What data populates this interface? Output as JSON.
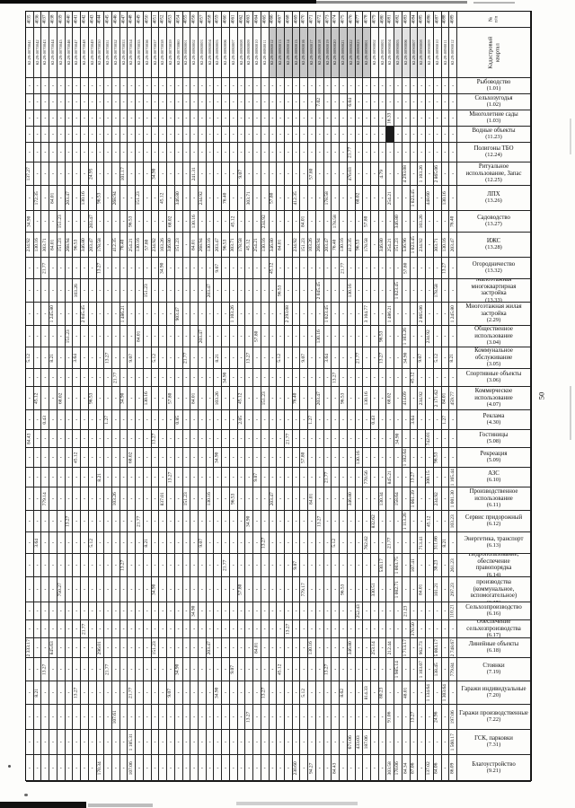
{
  "page": {
    "number": "50"
  },
  "colors": {
    "paper": "#fdfdfb",
    "ink": "#101010",
    "border": "#222222",
    "shade_dark": "#c7c7c7",
    "shade_light": "#e2e2e2"
  },
  "table": {
    "header": {
      "col1": "№\nп/п",
      "col2": "Кадастровый\nквартал"
    },
    "empty_marker": "-",
    "shaded_columns": {
      "dark_start": 31,
      "dark_end": 43,
      "light_start": 47,
      "light_end": 50
    },
    "columns": {
      "numbers": [
        "4035",
        "4036",
        "4037",
        "4038",
        "4039",
        "4040",
        "4041",
        "4042",
        "4043",
        "4044",
        "4045",
        "4046",
        "4047",
        "4048",
        "4049",
        "4050",
        "4051",
        "4052",
        "4053",
        "4054",
        "4055",
        "4056",
        "4057",
        "4058",
        "4059",
        "4060",
        "4061",
        "4062",
        "4063",
        "4064",
        "4065",
        "4066",
        "4067",
        "4068",
        "4069",
        "4070",
        "4071",
        "4072",
        "4073",
        "4074",
        "4075",
        "4076",
        "4077",
        "4078",
        "4079",
        "4080",
        "4081",
        "4082",
        "4083",
        "4084",
        "4085",
        "4086",
        "4087",
        "4088",
        "4089"
      ],
      "cadastral": [
        "62:29:0070041",
        "62:29:0070042",
        "62:29:0070043",
        "62:29:0070044",
        "62:29:0070045",
        "62:29:0070046",
        "62:29:0070047",
        "62:29:0070048",
        "62:29:0070049",
        "62:29:0070050",
        "62:29:0070051",
        "62:29:0070052",
        "62:29:0070053",
        "62:29:0070054",
        "62:29:0070055",
        "62:29:0070056",
        "62:29:0070057",
        "62:29:0070058",
        "62:29:0070059",
        "62:29:0070060",
        "62:29:0080001",
        "62:29:0080002",
        "62:29:0080003",
        "62:29:0080004",
        "62:29:0080005",
        "62:29:0080006",
        "62:29:0080007",
        "62:29:0080008",
        "62:29:0080009",
        "62:29:0080010",
        "62:29:0080011",
        "62:29:0080012",
        "62:29:0080013",
        "62:29:0080014",
        "62:29:0080015",
        "62:29:0080016",
        "62:29:0080017",
        "62:29:0080018",
        "62:29:0080019",
        "62:29:0080020",
        "62:29:0080021",
        "62:29:0080022",
        "62:29:0080023",
        "62:29:0090001",
        "62:29:0090002",
        "62:29:0090003",
        "62:29:0090004",
        "62:29:0090005",
        "62:29:0090006",
        "62:29:0090007",
        "62:29:0090008",
        "62:29:0090009",
        "62:29:0090010",
        "62:29:0090011",
        "62:29:0090012"
      ]
    },
    "rows": [
      {
        "name": "Рыбоводство",
        "code": "(1.01)",
        "fills": {}
      },
      {
        "name": "Сельхозугодья",
        "code": "(1.02)",
        "fills": {
          "37": "7.02",
          "41": "6.04"
        }
      },
      {
        "name": "Многолетние сады",
        "code": "(1.03)",
        "fills": {
          "46": "16.33"
        }
      },
      {
        "name": "Водные объекты",
        "code": "(11.23)",
        "fills": {},
        "black": [
          46
        ]
      },
      {
        "name": "Полигоны ТБО",
        "code": "(12.24)",
        "fills": {
          "41": "21.77"
        }
      },
      {
        "name": "Ритуальное использование, Запас",
        "code": "(12.25)",
        "fills": {
          "0": "137.27",
          "8": "24.95",
          "12": "101.17",
          "16": "34.90",
          "21": "241.31",
          "27": "9.07",
          "36": "57.80",
          "41": "476.03",
          "45": "4.79",
          "48": "4 293.08",
          "50": "1 103.26",
          "52": "2 865.06"
        }
      },
      {
        "name": "ЛПХ",
        "code": "(13.26)",
        "fills": {
          "1": "172.35",
          "3": "84.01",
          "5": "203.47",
          "7": "130.16",
          "9": "96.53",
          "11": "268.94",
          "14": "151.23",
          "17": "45.12",
          "19": "346.80",
          "22": "234.92",
          "25": "76.40",
          "28": "303.71",
          "31": "57.80",
          "34": "412.35",
          "38": "178.58",
          "42": "68.02",
          "46": "254.21",
          "49": "1 023.45",
          "51": "448.60",
          "53": "130.16"
        }
      },
      {
        "name": "Садоводство",
        "code": "(13.27)",
        "fills": {
          "0": "34.90",
          "4": "151.23",
          "8": "203.47",
          "13": "96.53",
          "18": "68.02",
          "21": "130.16",
          "26": "45.12",
          "30": "234.92",
          "35": "84.01",
          "39": "178.58",
          "43": "57.80",
          "47": "346.80",
          "50": "103.26",
          "54": "76.40"
        }
      },
      {
        "name": "ИЖС",
        "code": "(13.28)",
        "fills": {
          "0": "234.92",
          "1": "130.16",
          "2": "303.71",
          "3": "84.01",
          "4": "151.23",
          "5": "268.94",
          "6": "96.53",
          "7": "346.80",
          "8": "203.47",
          "9": "178.58",
          "11": "412.35",
          "12": "76.40",
          "13": "254.21",
          "14": "130.16",
          "15": "57.80",
          "16": "234.92",
          "17": "103.26",
          "18": "346.80",
          "19": "151.23",
          "21": "84.01",
          "22": "268.94",
          "23": "130.16",
          "24": "203.47",
          "25": "96.53",
          "26": "303.71",
          "27": "178.58",
          "28": "45.12",
          "29": "254.21",
          "30": "130.16",
          "31": "346.80",
          "32": "84.01",
          "34": "234.92",
          "35": "151.23",
          "36": "103.26",
          "37": "268.94",
          "38": "203.47",
          "39": "76.40",
          "40": "130.16",
          "41": "412.35",
          "42": "96.53",
          "43": "178.58",
          "45": "346.80",
          "46": "254.21",
          "47": "151.23",
          "48": "536.96",
          "49": "1 023.45",
          "50": "234.92",
          "52": "303.71",
          "53": "130.16",
          "54": "203.47"
        }
      },
      {
        "name": "Огородничество",
        "code": "(13.32)",
        "fills": {
          "2": "21.77",
          "9": "13.27",
          "17": "34.90",
          "24": "9.07",
          "31": "45.12",
          "40": "21.77",
          "48": "57.80",
          "53": "13.27"
        }
      },
      {
        "name": "Малоэтажная многоквартирная застройка",
        "code": "(13.33)",
        "fills": {
          "6": "103.26",
          "15": "151.23",
          "23": "203.47",
          "32": "96.53",
          "37": "2 045.45",
          "41": "130.16",
          "47": "1 023.45",
          "52": "178.58"
        }
      },
      {
        "name": "Многоэтажная жилая застройка",
        "code": "(2.29)",
        "fills": {
          "3": "1 245.80",
          "7": "2 045.45",
          "12": "1 486.21",
          "19": "903.47",
          "26": "1 103.26",
          "33": "2 293.08",
          "38": "1 023.45",
          "43": "3 104.77",
          "46": "1 486.21",
          "50": "2 865.06",
          "54": "1 245.80"
        }
      },
      {
        "name": "Общественное использование",
        "code": "(3.04)",
        "fills": {
          "5": "151.23",
          "14": "84.01",
          "22": "203.47",
          "29": "57.80",
          "37": "130.16",
          "45": "96.53",
          "48": "1 103.26",
          "51": "234.92"
        }
      },
      {
        "name": "Коммунальное обслуживание",
        "code": "(3.05)",
        "fills": {
          "0": "5.12",
          "3": "8.21",
          "6": "3.64",
          "10": "13.27",
          "13": "9.07",
          "16": "5.12",
          "20": "21.77",
          "24": "8.21",
          "28": "13.27",
          "32": "5.12",
          "35": "9.07",
          "38": "3.64",
          "42": "21.77",
          "45": "13.27",
          "48": "34.90",
          "50": "9.07",
          "52": "5.12",
          "54": "8.21"
        }
      },
      {
        "name": "Спортивные объекты",
        "code": "(3.06)",
        "fills": {
          "11": "21.77",
          "25": "34.90",
          "39": "13.27",
          "49": "45.12"
        }
      },
      {
        "name": "Коммерческое использование",
        "code": "(4.07)",
        "fills": {
          "1": "45.12",
          "4": "68.02",
          "8": "96.53",
          "12": "34.90",
          "15": "130.16",
          "18": "57.80",
          "21": "84.01",
          "24": "103.26",
          "27": "45.12",
          "30": "151.23",
          "34": "76.40",
          "37": "203.47",
          "40": "96.53",
          "43": "130.16",
          "46": "68.02",
          "48": "414.09",
          "50": "234.92",
          "52": "2 171.62",
          "53": "84.01",
          "54": "459.77"
        }
      },
      {
        "name": "Реклама",
        "code": "(4.30)",
        "fills": {
          "2": "0.43",
          "10": "1.27",
          "19": "0.85",
          "27": "2.05",
          "36": "1.27",
          "44": "0.43",
          "49": "3.64",
          "53": "1.27"
        }
      },
      {
        "name": "Гостиницы",
        "code": "(5.08)",
        "fills": {
          "0": "84.43",
          "16": "13.27",
          "33": "21.77",
          "47": "34.90",
          "51": "742.01"
        }
      },
      {
        "name": "Рекреация",
        "code": "(5.09)",
        "fills": {
          "6": "45.12",
          "13": "68.02",
          "24": "34.90",
          "35": "57.80",
          "42": "130.16",
          "48": "1 102.64",
          "52": "96.53"
        }
      },
      {
        "name": "АЗС",
        "code": "(6.10)",
        "fills": {
          "9": "8.21",
          "18": "13.27",
          "29": "9.07",
          "38": "21.77",
          "43": "770.56",
          "46": "845.21",
          "49": "13.27",
          "51": "300.15",
          "54": "1 165.44"
        }
      },
      {
        "name": "Производственное использование",
        "code": "(6.11)",
        "fills": {
          "2": "779.14",
          "11": "103.26",
          "17": "837.01",
          "20": "151.23",
          "23": "130.16",
          "26": "96.53",
          "31": "203.47",
          "36": "84.01",
          "41": "346.80",
          "45": "130.34",
          "47": "158.64",
          "49": "1 061.39",
          "52": "234.92",
          "54": "1 001.30"
        }
      },
      {
        "name": "Сервис придорожный",
        "code": "(6.12)",
        "fills": {
          "5": "13.27",
          "14": "21.77",
          "28": "34.90",
          "37": "13.27",
          "44": "832.62",
          "48": "1 113.26",
          "51": "45.12",
          "54": "103.23"
        }
      },
      {
        "name": "Энергетика, транспорт",
        "code": "(6.13)",
        "fills": {
          "1": "3.64",
          "8": "5.12",
          "15": "8.21",
          "22": "9.07",
          "30": "13.27",
          "39": "5.12",
          "43": "762.82",
          "46": "21.77",
          "50": "713.41",
          "52": "311.66",
          "53": "8.21"
        }
      },
      {
        "name": "Недропользование, обеспечение правопорядка",
        "code": "(6.14)",
        "fills": {
          "12": "13.27",
          "25": "21.77",
          "34": "9.07",
          "45": "530.17",
          "47": "1 003.75",
          "49": "107.41",
          "52": "38.23",
          "54": "261.23"
        }
      },
      {
        "name": "Обеспечение производства (коммунальное, вспомогательное)",
        "code": "(6.15)",
        "fills": {
          "4": "750.27",
          "16": "34.90",
          "27": "57.80",
          "35": "779.17",
          "40": "96.53",
          "44": "330.51",
          "47": "1 002.71",
          "50": "84.01",
          "52": "101.21",
          "54": "297.23"
        }
      },
      {
        "name": "Сельхозпроизводство",
        "code": "(6.16)",
        "fills": {
          "21": "34.90",
          "42": "252.43",
          "48": "21.23",
          "54": "110.21"
        }
      },
      {
        "name": "Обеспечение сельхозпроизводства",
        "code": "(6.17)",
        "fills": {
          "7": "21.77",
          "33": "13.27",
          "49": "370.50"
        }
      },
      {
        "name": "Линейные объекты",
        "code": "(6.18)",
        "fills": {
          "0": "2 333.17",
          "3": "845.63",
          "9": "296.01",
          "16": "151.23",
          "23": "203.47",
          "29": "84.01",
          "36": "130.16",
          "41": "346.80",
          "44": "253.14",
          "46": "212.44",
          "48": "1 713.17",
          "50": "962.73",
          "52": "5 003.17",
          "54": "2 748.67"
        }
      },
      {
        "name": "Стоянки",
        "code": "(7.19)",
        "fills": {
          "2": "13.27",
          "10": "21.77",
          "19": "34.90",
          "26": "9.07",
          "32": "45.12",
          "38": "13.27",
          "47": "1 985.14",
          "50": "1 103.07",
          "52": "138.45",
          "54": "779.84"
        }
      },
      {
        "name": "Гаражи индивидуальные",
        "code": "(7.20)",
        "fills": {
          "1": "8.21",
          "6": "13.27",
          "13": "21.77",
          "18": "9.07",
          "24": "34.90",
          "30": "13.27",
          "35": "5.12",
          "40": "8.62",
          "43": "814.33",
          "45": "80.23",
          "48": "48.01",
          "51": "1 134.64",
          "53": "1 303.64"
        }
      },
      {
        "name": "Гаражи производственные",
        "code": "(7.22)",
        "fills": {
          "11": "107.61",
          "28": "13.27",
          "46": "91.06",
          "49": "13.27",
          "52": "24.96",
          "54": "197.06"
        }
      },
      {
        "name": "ГСК, парковки",
        "code": "(7.31)",
        "fills": {
          "13": "1 185.31",
          "41": "671.06",
          "42": "433.03",
          "43": "187.06",
          "54": "1 560.17"
        }
      },
      {
        "name": "Благоустройство",
        "code": "(9.21)",
        "fills": {
          "9": "170.34",
          "13": "107.06",
          "34": "230.60",
          "36": "94.27",
          "39": "84.43",
          "46": "303.58",
          "47": "170.06",
          "48": "84.34",
          "49": "87.06",
          "51": "137.02",
          "52": "84.06",
          "54": "86.09"
        }
      }
    ]
  }
}
